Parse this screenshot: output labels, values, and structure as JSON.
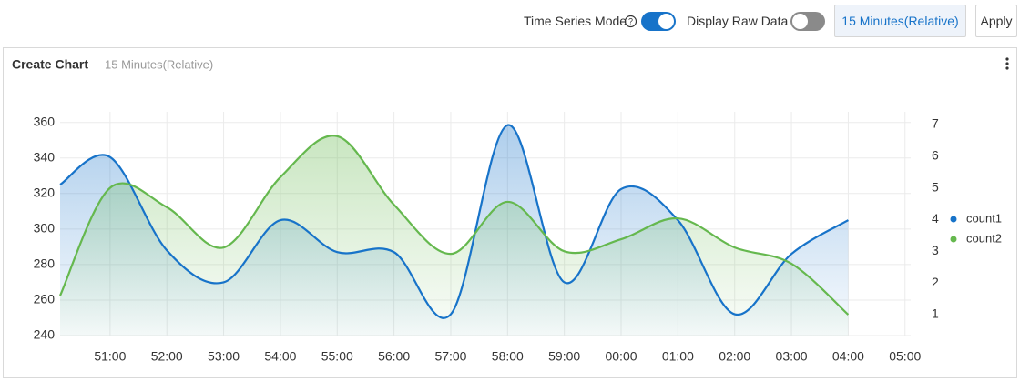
{
  "toolbar": {
    "time_series_mode": "Time Series Mode",
    "display_raw_data": "Display Raw Data",
    "time_range": "15 Minutes(Relative)",
    "apply": "Apply"
  },
  "chart_data": {
    "type": "line",
    "title": "Create Chart",
    "subtitle": "15 Minutes(Relative)",
    "x": [
      50.12,
      51,
      52,
      53,
      54,
      55,
      56,
      57,
      58,
      59,
      60,
      61,
      62,
      63,
      64
    ],
    "xlim": [
      50.12,
      65.1
    ],
    "xticks": [
      {
        "value": 51,
        "label": "51:00"
      },
      {
        "value": 52,
        "label": "52:00"
      },
      {
        "value": 53,
        "label": "53:00"
      },
      {
        "value": 54,
        "label": "54:00"
      },
      {
        "value": 55,
        "label": "55:00"
      },
      {
        "value": 56,
        "label": "56:00"
      },
      {
        "value": 57,
        "label": "57:00"
      },
      {
        "value": 58,
        "label": "58:00"
      },
      {
        "value": 59,
        "label": "59:00"
      },
      {
        "value": 60,
        "label": "00:00"
      },
      {
        "value": 61,
        "label": "01:00"
      },
      {
        "value": 62,
        "label": "02:00"
      },
      {
        "value": 63,
        "label": "03:00"
      },
      {
        "value": 64,
        "label": "04:00"
      },
      {
        "value": 65,
        "label": "05:00"
      }
    ],
    "ylim": [
      240,
      366
    ],
    "yticks": [
      240,
      260,
      280,
      300,
      320,
      340,
      360
    ],
    "y2lim": [
      0.34,
      7.4
    ],
    "y2ticks": [
      1,
      2,
      3,
      4,
      5,
      6,
      7
    ],
    "grid": true,
    "legend": "right",
    "series": [
      {
        "name": "count1",
        "color": "#1773c9",
        "values": [
          325,
          340.5,
          288,
          270,
          305,
          287,
          287,
          252,
          358.5,
          270,
          322.5,
          305,
          252,
          286,
          305
        ]
      },
      {
        "name": "count2",
        "color": "#65b84e",
        "axis": "y2",
        "values": [
          1.6,
          5.0,
          4.39,
          3.12,
          5.34,
          6.63,
          4.47,
          2.92,
          4.56,
          3.0,
          3.38,
          4.04,
          3.12,
          2.61,
          1.0
        ]
      }
    ]
  }
}
